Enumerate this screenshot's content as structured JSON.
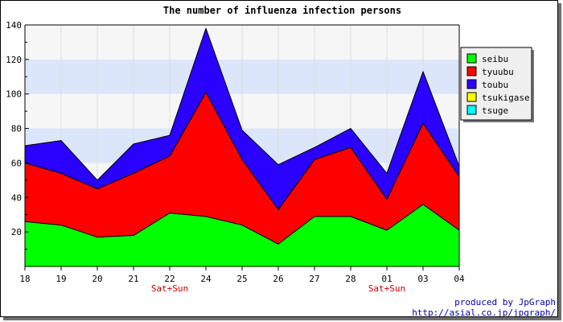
{
  "chart_data": {
    "type": "area",
    "stacked": true,
    "title": "The number of influenza infection persons",
    "xlabel": "",
    "ylabel": "",
    "categories": [
      "18",
      "19",
      "20",
      "21",
      "22",
      "24",
      "25",
      "26",
      "27",
      "28",
      "01",
      "03",
      "04"
    ],
    "category_notes": [
      {
        "category": "22",
        "text": "Sat+Sun"
      },
      {
        "category": "01",
        "text": "Sat+Sun"
      }
    ],
    "ylim": [
      0,
      140
    ],
    "yticks": [
      20,
      40,
      60,
      80,
      100,
      120,
      140
    ],
    "grid": "horizontal bands, light vertical lines",
    "band_colors": [
      "#f6f6f6",
      "#dce6fa"
    ],
    "legend_placement": "right",
    "series": [
      {
        "name": "seibu",
        "color": "#00ff00",
        "values": [
          26,
          24,
          17,
          18,
          31,
          29,
          24,
          13,
          29,
          29,
          21,
          36,
          21
        ]
      },
      {
        "name": "tyuubu",
        "color": "#ff0000",
        "values": [
          34,
          30,
          28,
          36,
          33,
          72,
          38,
          20,
          33,
          40,
          18,
          47,
          31
        ]
      },
      {
        "name": "toubu",
        "color": "#2a00ff",
        "values": [
          10,
          19,
          5,
          17,
          12,
          37,
          17,
          26,
          7,
          11,
          15,
          30,
          6
        ]
      },
      {
        "name": "tsukigase",
        "color": "#ffff00",
        "values": [
          0,
          0,
          0,
          0,
          0,
          0,
          0,
          0,
          0,
          0,
          0,
          0,
          0
        ]
      },
      {
        "name": "tsuge",
        "color": "#00ffff",
        "values": [
          0,
          0,
          0,
          0,
          0,
          0,
          0,
          0,
          0,
          0,
          0,
          0,
          0
        ]
      }
    ]
  },
  "credits": {
    "line1": "produced by JpGraph",
    "line2": "http://asial.co.jp/jpgraph/",
    "color": "#0000aa"
  }
}
